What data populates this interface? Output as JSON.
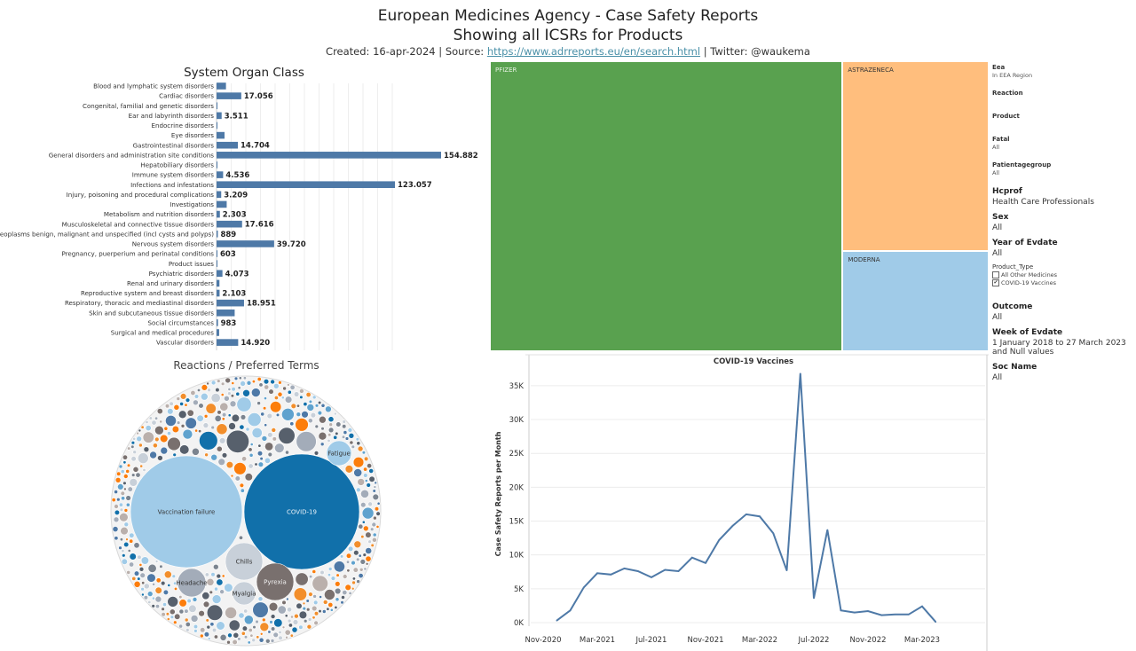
{
  "header": {
    "title_line1": "European Medicines Agency - Case Safety Reports",
    "title_line2": "Showing all ICSRs for Products",
    "created": "Created: 16-apr-2024 | Source: ",
    "source_link": "https://www.adrreports.eu/en/search.html",
    "twitter": " | Twitter: @waukema"
  },
  "soc_chart_title": "System Organ Class",
  "bubble_chart_title": "Reactions / Preferred Terms",
  "colors": {
    "bar": "#4e79a7",
    "line": "#4e79a7",
    "pfizer": "#59a14f",
    "astrazeneca": "#ffbe7d",
    "moderna": "#a0cbe8"
  },
  "chart_data": [
    {
      "type": "bar",
      "orientation": "horizontal",
      "title": "System Organ Class",
      "categories": [
        "Blood and lymphatic system disorders",
        "Cardiac disorders",
        "Congenital, familial and genetic disorders",
        "Ear and labyrinth disorders",
        "Endocrine disorders",
        "Eye disorders",
        "Gastrointestinal disorders",
        "General disorders and administration site conditions",
        "Hepatobiliary disorders",
        "Immune system disorders",
        "Infections and infestations",
        "Injury, poisoning and procedural complications",
        "Investigations",
        "Metabolism and nutrition disorders",
        "Musculoskeletal and connective tissue disorders",
        "Neoplasms benign, malignant and unspecified (incl cysts and polyps)",
        "Nervous system disorders",
        "Pregnancy, puerperium and perinatal conditions",
        "Product issues",
        "Psychiatric disorders",
        "Renal and urinary disorders",
        "Reproductive system and breast disorders",
        "Respiratory, thoracic and mediastinal disorders",
        "Skin and subcutaneous tissue disorders",
        "Social circumstances",
        "Surgical and medical procedures",
        "Vascular disorders"
      ],
      "values": [
        6500,
        17056,
        300,
        3511,
        400,
        5500,
        14704,
        154882,
        500,
        4536,
        123057,
        3209,
        7000,
        2303,
        17616,
        889,
        39720,
        603,
        200,
        4073,
        2000,
        2103,
        18951,
        12500,
        983,
        1800,
        14920
      ],
      "data_labels": [
        "",
        "17.056",
        "",
        "3.511",
        "",
        "",
        "14.704",
        "154.882",
        "",
        "4.536",
        "123.057",
        "3.209",
        "",
        "2.303",
        "17.616",
        "889",
        "39.720",
        "603",
        "",
        "4.073",
        "",
        "2.103",
        "18.951",
        "",
        "983",
        "",
        "14.920"
      ],
      "xlim": [
        0,
        180000
      ]
    },
    {
      "type": "treemap",
      "items": [
        {
          "name": "PFIZER",
          "value": 0.707,
          "color": "#59a14f"
        },
        {
          "name": "ASTRAZENECA",
          "value": 0.192,
          "color": "#ffbe7d"
        },
        {
          "name": "MODERNA",
          "value": 0.101,
          "color": "#a0cbe8"
        }
      ]
    },
    {
      "type": "line",
      "title": "COVID-19 Vaccines",
      "ylabel": "Case Safety Reports per Month",
      "xticks": [
        "Nov-2020",
        "Mar-2021",
        "Jul-2021",
        "Nov-2021",
        "Mar-2022",
        "Jul-2022",
        "Nov-2022",
        "Mar-2023"
      ],
      "yticks": [
        "0K",
        "5K",
        "10K",
        "15K",
        "20K",
        "25K",
        "30K",
        "35K"
      ],
      "ylim": [
        0,
        38000
      ],
      "x": [
        "2020-12",
        "2021-01",
        "2021-02",
        "2021-03",
        "2021-04",
        "2021-05",
        "2021-06",
        "2021-07",
        "2021-08",
        "2021-09",
        "2021-10",
        "2021-11",
        "2021-12",
        "2022-01",
        "2022-02",
        "2022-03",
        "2022-04",
        "2022-05",
        "2022-06",
        "2022-07",
        "2022-08",
        "2022-09",
        "2022-10",
        "2022-11",
        "2022-12",
        "2023-01",
        "2023-02",
        "2023-03",
        "2023-04"
      ],
      "values": [
        300,
        1800,
        5200,
        7300,
        7100,
        8000,
        7600,
        6700,
        7800,
        7600,
        9600,
        8800,
        12200,
        14300,
        16000,
        15700,
        13200,
        7700,
        36800,
        3600,
        13700,
        1800,
        1500,
        1700,
        1100,
        1200,
        1200,
        2400,
        100
      ],
      "grid": true
    },
    {
      "type": "bubble",
      "labeled_bubbles": [
        "Vaccination failure",
        "COVID-19",
        "Chills",
        "Pyrexia",
        "Headache",
        "Myalgia",
        "Fatigue"
      ]
    }
  ],
  "filters": {
    "eea": {
      "label": "Eea",
      "value": "In EEA Region"
    },
    "reaction": {
      "label": "Reaction"
    },
    "product": {
      "label": "Product"
    },
    "fatal": {
      "label": "Fatal",
      "value": "All"
    },
    "patientagegroup": {
      "label": "Patientagegroup",
      "value": "All"
    },
    "hcprof": {
      "label": "Hcprof",
      "value": "Health Care Professionals"
    },
    "sex": {
      "label": "Sex",
      "value": "All"
    },
    "year_of_evdate": {
      "label": "Year of Evdate",
      "value": "All"
    },
    "product_type": {
      "label": "Product_Type",
      "option1": "All Other Medicines",
      "option2": "COVID-19 Vaccines",
      "check_mark": "✔"
    },
    "outcome": {
      "label": "Outcome",
      "value": "All"
    },
    "week_of_evdate": {
      "label": "Week of Evdate",
      "value_line1": "1 January 2018 to 27 March 2023",
      "value_line2": "and Null values"
    },
    "soc_name": {
      "label": "Soc Name",
      "value": "All"
    }
  }
}
